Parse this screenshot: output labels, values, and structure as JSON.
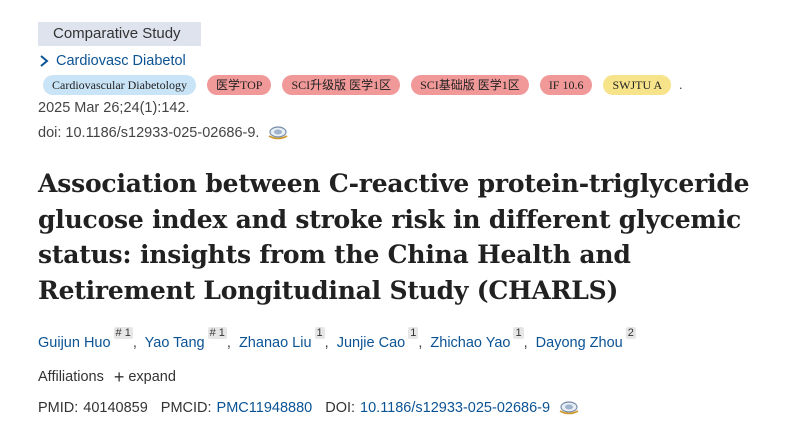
{
  "publication_type": "Comparative Study",
  "journal": {
    "link_text": "Cardiovasc Diabetol",
    "chevron_icon": "chevron-right-icon"
  },
  "badges": [
    {
      "label": "Cardiovascular Diabetology",
      "color": "#c9e4f7"
    },
    {
      "label": "医学TOP",
      "color": "#f19999"
    },
    {
      "label": "SCI升级版 医学1区",
      "color": "#f19999"
    },
    {
      "label": "SCI基础版 医学1区",
      "color": "#f19999"
    },
    {
      "label": "IF 10.6",
      "color": "#f19999"
    },
    {
      "label": "SWJTU A",
      "color": "#f6e38a"
    }
  ],
  "badges_trailing": ".",
  "citation": "2025 Mar 26;24(1):142.",
  "doi_line": "doi: 10.1186/s12933-025-02686-9.",
  "title": "Association between C-reactive protein-triglyceride glucose index and stroke risk in different glycemic status: insights from the China Health and Retirement Longitudinal Study (CHARLS)",
  "authors": [
    {
      "name": "Guijun Huo",
      "sup": "# 1"
    },
    {
      "name": "Yao Tang",
      "sup": "# 1"
    },
    {
      "name": "Zhanao Liu",
      "sup": "1"
    },
    {
      "name": "Junjie Cao",
      "sup": "1"
    },
    {
      "name": "Zhichao Yao",
      "sup": "1"
    },
    {
      "name": "Dayong Zhou",
      "sup": "2"
    }
  ],
  "affiliations": {
    "label": "Affiliations",
    "expand": "expand"
  },
  "ids": {
    "pmid_label": "PMID:",
    "pmid": "40140859",
    "pmcid_label": "PMCID:",
    "pmcid": "PMC11948880",
    "doi_label": "DOI:",
    "doi": "10.1186/s12933-025-02686-9"
  }
}
